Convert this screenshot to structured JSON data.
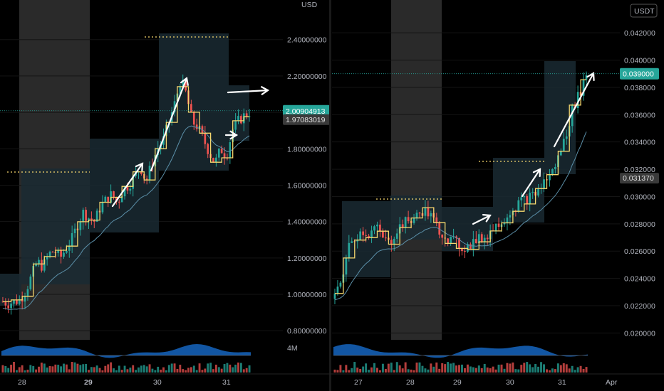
{
  "colors": {
    "background": "#000000",
    "bull": "#26a69a",
    "bear": "#ef5350",
    "step_line": "#f5d76e",
    "ma_line": "#5b8fa8",
    "zone": "#1a2a33",
    "session_shade": "#2a2a2a",
    "osc_fill": "#1565c0",
    "arrow": "#ffffff",
    "price_tag": "#26a69a",
    "grey_tag": "#3a3a3a"
  },
  "chart_data": [
    {
      "type": "candlestick",
      "quote_unit": "USD",
      "x_labels": [
        "28",
        "29",
        "30",
        "31"
      ],
      "x_bold": [
        "29"
      ],
      "y_ticks": [
        "2.40000000",
        "2.20000000",
        "2.00000000",
        "1.80000000",
        "1.60000000",
        "1.40000000",
        "1.20000000",
        "1.00000000",
        "0.80000000"
      ],
      "ylim": [
        0.75,
        2.52
      ],
      "last_price": "2.00904913",
      "secondary_price": "1.97083019",
      "oscillator_label": "4M",
      "price_path": [
        0.96,
        0.95,
        0.96,
        0.97,
        1.02,
        1.1,
        1.18,
        1.15,
        1.22,
        1.24,
        1.2,
        1.25,
        1.3,
        1.38,
        1.45,
        1.42,
        1.4,
        1.48,
        1.52,
        1.55,
        1.5,
        1.58,
        1.6,
        1.65,
        1.7,
        1.62,
        1.72,
        1.8,
        1.85,
        1.95,
        2.05,
        2.18,
        2.1,
        1.95,
        1.92,
        1.85,
        1.78,
        1.72,
        1.8,
        1.76,
        1.9,
        1.95,
        1.98,
        2.0
      ]
    },
    {
      "type": "candlestick",
      "quote_unit": "USDT",
      "x_labels": [
        "27",
        "28",
        "29",
        "30",
        "31",
        "Apr"
      ],
      "x_bold": [],
      "y_ticks": [
        "0.042000",
        "0.040000",
        "0.038000",
        "0.036000",
        "0.034000",
        "0.032000",
        "0.030000",
        "0.028000",
        "0.026000",
        "0.024000",
        "0.022000",
        "0.020000"
      ],
      "ylim": [
        0.0195,
        0.0431
      ],
      "last_price": "0.039000",
      "secondary_price": "0.031370",
      "price_path": [
        0.0225,
        0.024,
        0.0262,
        0.027,
        0.0275,
        0.0272,
        0.0278,
        0.027,
        0.0265,
        0.0275,
        0.028,
        0.0282,
        0.0285,
        0.029,
        0.0286,
        0.0278,
        0.0272,
        0.0268,
        0.0265,
        0.0262,
        0.0265,
        0.0268,
        0.027,
        0.0275,
        0.028,
        0.0285,
        0.029,
        0.0295,
        0.0298,
        0.03,
        0.0305,
        0.0312,
        0.0318,
        0.033,
        0.0345,
        0.0365,
        0.0375,
        0.039
      ]
    }
  ]
}
